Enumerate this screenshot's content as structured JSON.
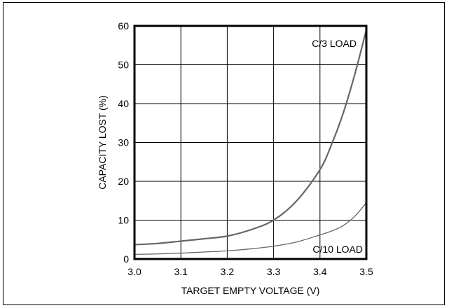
{
  "chart_data": {
    "type": "line",
    "title": "",
    "xlabel": "TARGET EMPTY VOLTAGE (V)",
    "ylabel": "CAPACITY LOST (%)",
    "xlim": [
      3.0,
      3.5
    ],
    "ylim": [
      0,
      60
    ],
    "xticks": [
      "3.0",
      "3.1",
      "3.2",
      "3.3",
      "3.4",
      "3.5"
    ],
    "yticks": [
      "0",
      "10",
      "20",
      "30",
      "40",
      "50",
      "60"
    ],
    "grid": true,
    "series": [
      {
        "name": "C/3 LOAD",
        "color": "#666666",
        "x": [
          3.0,
          3.05,
          3.1,
          3.15,
          3.2,
          3.25,
          3.3,
          3.35,
          3.4,
          3.425,
          3.45,
          3.475,
          3.5
        ],
        "y": [
          3.7,
          4.0,
          4.6,
          5.2,
          5.9,
          7.5,
          10.0,
          15.0,
          23.0,
          29.5,
          37.5,
          47.5,
          59.0
        ]
      },
      {
        "name": "C/10 LOAD",
        "color": "#666666",
        "x": [
          3.0,
          3.05,
          3.1,
          3.15,
          3.2,
          3.25,
          3.3,
          3.35,
          3.4,
          3.425,
          3.45,
          3.475,
          3.5
        ],
        "y": [
          1.2,
          1.3,
          1.5,
          1.8,
          2.1,
          2.6,
          3.3,
          4.4,
          6.2,
          7.2,
          8.6,
          11.0,
          14.5
        ]
      }
    ]
  }
}
